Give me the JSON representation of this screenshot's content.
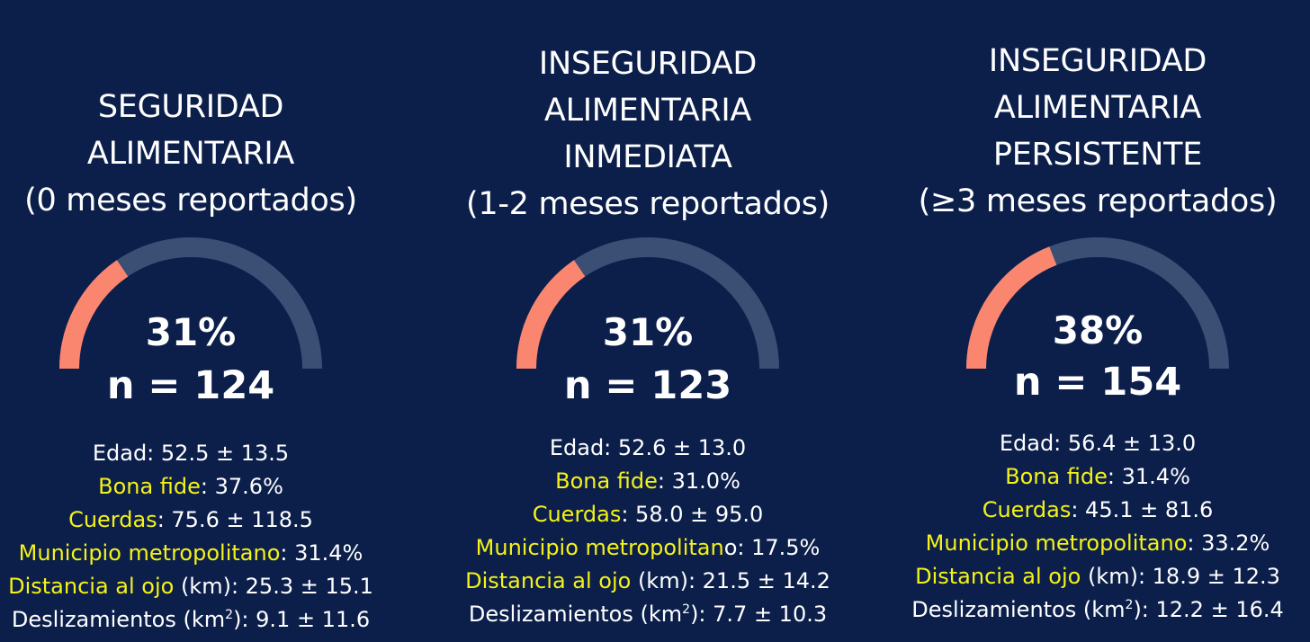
{
  "colors": {
    "background": "#0c1f4b",
    "gauge_fill": "#fa8670",
    "gauge_track": "#3a4f73",
    "highlight": "#f4f217"
  },
  "panels": [
    {
      "title_lines": [
        "SEGURIDAD",
        "ALIMENTARIA",
        "(0 meses reportados)"
      ],
      "percent_value": 31,
      "percent_text": "31%",
      "n_text": "n = 124",
      "stats": [
        {
          "label": "Edad:",
          "value": " 52.5 ± 13.5"
        },
        {
          "label": "Bona fide",
          "value": ": 37.6%"
        },
        {
          "label": "Cuerdas",
          "value": ": 75.6 ± 118.5"
        },
        {
          "label": "Municipio metropolitano",
          "value": ": 31.4%"
        },
        {
          "label": "Distancia al ojo",
          "value": " (km): 25.3 ± 15.1"
        },
        {
          "label": "Deslizamientos (km",
          "sup": "2",
          "value": "): 9.1 ± 11.6"
        }
      ]
    },
    {
      "title_lines": [
        "INSEGURIDAD",
        "ALIMENTARIA",
        "INMEDIATA",
        "(1-2 meses reportados)"
      ],
      "percent_value": 31,
      "percent_text": "31%",
      "n_text": "n = 123",
      "stats": [
        {
          "label": "Edad:",
          "value": " 52.6 ± 13.0"
        },
        {
          "label": "Bona fide",
          "value": ": 31.0%"
        },
        {
          "label": "Cuerdas",
          "value": ": 58.0 ± 95.0"
        },
        {
          "label": "Municipio metropolitan",
          "value": "o: 17.5%"
        },
        {
          "label": "Distancia al ojo",
          "value": " (km): 21.5 ± 14.2"
        },
        {
          "label": "Deslizamientos (km",
          "sup": "2",
          "value": "): 7.7 ± 10.3"
        }
      ]
    },
    {
      "title_lines": [
        "INSEGURIDAD",
        "ALIMENTARIA",
        "PERSISTENTE",
        "(≥3 meses reportados)"
      ],
      "percent_value": 38,
      "percent_text": "38%",
      "n_text": "n = 154",
      "stats": [
        {
          "label": "Edad:",
          "value": " 56.4 ± 13.0"
        },
        {
          "label": "Bona fide",
          "value": ": 31.4%"
        },
        {
          "label": "Cuerdas",
          "value": ": 45.1 ± 81.6"
        },
        {
          "label": "Municipio metropolitano",
          "value": ": 33.2%"
        },
        {
          "label": "Distancia al ojo",
          "value": " (km): 18.9 ± 12.3"
        },
        {
          "label": "Deslizamientos (km",
          "sup": "2",
          "value": "): 12.2 ± 16.4"
        }
      ]
    }
  ]
}
